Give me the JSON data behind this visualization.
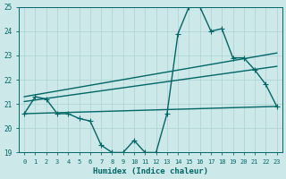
{
  "xlabel": "Humidex (Indice chaleur)",
  "background_color": "#cce8e8",
  "grid_color": "#b0d4d4",
  "line_color": "#006666",
  "xlim": [
    -0.5,
    23.5
  ],
  "ylim": [
    19,
    25
  ],
  "yticks": [
    19,
    20,
    21,
    22,
    23,
    24,
    25
  ],
  "xticks": [
    0,
    1,
    2,
    3,
    4,
    5,
    6,
    7,
    8,
    9,
    10,
    11,
    12,
    13,
    14,
    15,
    16,
    17,
    18,
    19,
    20,
    21,
    22,
    23
  ],
  "series1_x": [
    0,
    1,
    2,
    3,
    4,
    5,
    6,
    7,
    8,
    9,
    10,
    11,
    12,
    13,
    14,
    15,
    16,
    17,
    18,
    19,
    20,
    21,
    22,
    23
  ],
  "series1_y": [
    20.6,
    21.3,
    21.2,
    20.6,
    20.6,
    20.4,
    20.3,
    19.3,
    19.0,
    19.0,
    19.5,
    19.0,
    19.0,
    20.6,
    23.9,
    25.0,
    25.0,
    24.0,
    24.1,
    22.9,
    22.9,
    22.4,
    21.8,
    20.9
  ],
  "line2_x": [
    0,
    23
  ],
  "line2_y": [
    20.6,
    20.9
  ],
  "line3_x": [
    0,
    23
  ],
  "line3_y": [
    21.1,
    22.55
  ],
  "line4_x": [
    0,
    23
  ],
  "line4_y": [
    21.3,
    23.1
  ],
  "marker_size": 2.5,
  "line_width": 1.0
}
